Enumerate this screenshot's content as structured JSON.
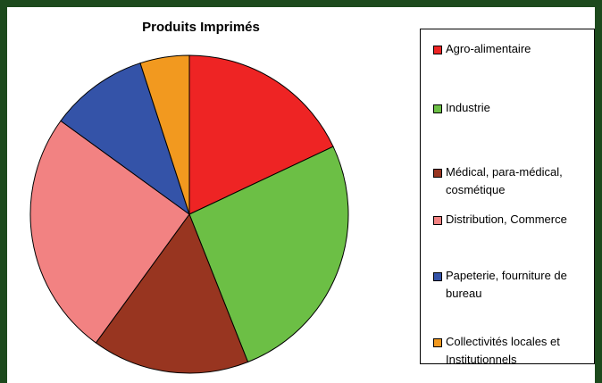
{
  "chart_data": {
    "type": "pie",
    "title": "Produits Imprimés",
    "categories": [
      "Agro-alimentaire",
      "Industrie",
      "Médical, para-médical, cosmétique",
      "Distribution, Commerce",
      "Papeterie, fourniture de bureau",
      "Collectivités locales et Institutionnels"
    ],
    "values": [
      18,
      26,
      16,
      25,
      10,
      5
    ],
    "colors": [
      "#ee2424",
      "#6cbf45",
      "#983520",
      "#f28282",
      "#3453a8",
      "#f2991f"
    ],
    "legend": "right"
  }
}
